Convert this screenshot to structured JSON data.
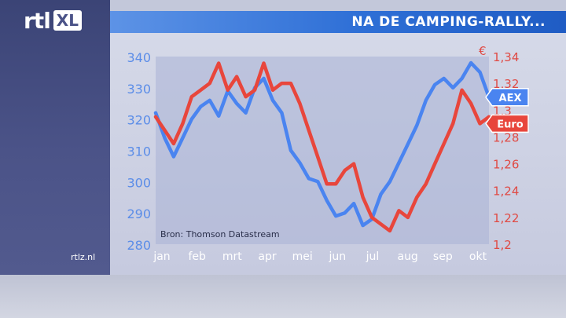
{
  "brand": {
    "logo_text": "rtl",
    "logo_xl": "XL",
    "site": "rtlz.nl"
  },
  "header": {
    "title": "NA DE CAMPING-RALLY..."
  },
  "colors": {
    "aex": "#4a84f0",
    "euro": "#e8463c",
    "title_bar": "#2e6fd6",
    "panel": "#3b4476"
  },
  "chart_data": {
    "type": "line",
    "title": "NA DE CAMPING-RALLY...",
    "source": "Bron: Thomson Datastream",
    "x_labels": [
      "jan",
      "feb",
      "mrt",
      "apr",
      "mei",
      "jun",
      "jul",
      "aug",
      "sep",
      "okt"
    ],
    "y_left": {
      "ticks": [
        "340",
        "330",
        "320",
        "310",
        "300",
        "290",
        "280"
      ],
      "range": [
        280,
        340
      ]
    },
    "y_right": {
      "unit": "€",
      "ticks": [
        "1,34",
        "1,32",
        "1,3",
        "1,28",
        "1,26",
        "1,24",
        "1,22",
        "1,2"
      ],
      "range": [
        1.2,
        1.34
      ]
    },
    "series": [
      {
        "name": "AEX",
        "axis": "left",
        "values": [
          322,
          314,
          308,
          314,
          320,
          324,
          326,
          321,
          329,
          325,
          322,
          330,
          333,
          326,
          322,
          310,
          306,
          301,
          300,
          294,
          289,
          290,
          293,
          286,
          288,
          296,
          300,
          306,
          312,
          318,
          326,
          331,
          333,
          330,
          333,
          338,
          335,
          327
        ]
      },
      {
        "name": "Euro",
        "axis": "right",
        "values": [
          1.295,
          1.285,
          1.275,
          1.29,
          1.31,
          1.315,
          1.32,
          1.335,
          1.315,
          1.325,
          1.31,
          1.315,
          1.335,
          1.315,
          1.32,
          1.32,
          1.305,
          1.285,
          1.265,
          1.245,
          1.245,
          1.255,
          1.26,
          1.235,
          1.22,
          1.215,
          1.21,
          1.225,
          1.22,
          1.235,
          1.245,
          1.26,
          1.275,
          1.29,
          1.315,
          1.305,
          1.29,
          1.295
        ]
      }
    ],
    "annotations": [
      {
        "series": "AEX",
        "label": "AEX",
        "value": 327
      },
      {
        "series": "Euro",
        "label": "Euro",
        "value": 1.29
      }
    ]
  }
}
